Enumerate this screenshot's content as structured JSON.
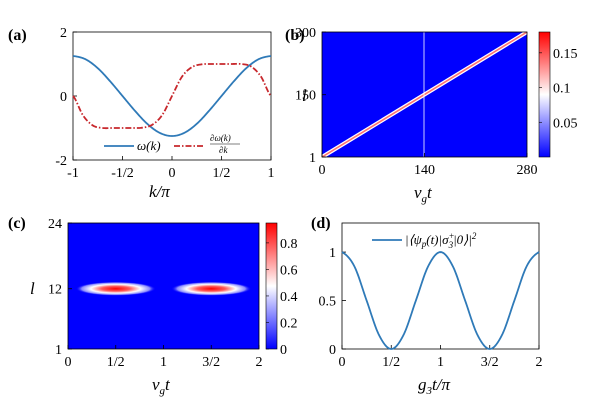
{
  "chart_data": [
    {
      "panel_label": "(a)",
      "type": "line",
      "xlabel": "k/π",
      "ylabel": "",
      "xlim": [
        -1,
        1
      ],
      "ylim": [
        -2,
        2
      ],
      "x_ticks": [
        -1,
        -0.5,
        0,
        0.5,
        1
      ],
      "x_tick_labels": [
        "-1",
        "-1/2",
        "0",
        "1/2",
        "1"
      ],
      "y_ticks": [
        -2,
        0,
        2
      ],
      "y_tick_labels": [
        "-2",
        "0",
        "2"
      ],
      "legend_position": "bottom-center",
      "series": [
        {
          "name": "ω(k)",
          "color": "#2f7ab8",
          "style": "solid",
          "x": [
            -1,
            -0.875,
            -0.75,
            -0.625,
            -0.5,
            -0.375,
            -0.25,
            -0.125,
            0,
            0.125,
            0.25,
            0.375,
            0.5,
            0.625,
            0.75,
            0.875,
            1
          ],
          "y": [
            1.25,
            1.15,
            0.87,
            0.46,
            0.0,
            -0.46,
            -0.87,
            -1.15,
            -1.25,
            -1.15,
            -0.87,
            -0.46,
            0.0,
            0.46,
            0.87,
            1.15,
            1.25
          ]
        },
        {
          "name_num": "∂ω(k)",
          "name_den": "∂k",
          "color": "#c8282d",
          "style": "dashdot",
          "x": [
            -1,
            -0.9,
            -0.8,
            -0.7,
            -0.6,
            -0.5,
            -0.4,
            -0.3,
            -0.2,
            -0.1,
            0,
            0.1,
            0.2,
            0.3,
            0.4,
            0.5,
            0.6,
            0.7,
            0.8,
            0.9,
            1
          ],
          "y": [
            0.0,
            -0.6,
            -0.92,
            -1.0,
            -1.0,
            -1.0,
            -1.0,
            -0.99,
            -0.9,
            -0.6,
            0.0,
            0.6,
            0.9,
            0.99,
            1.0,
            1.0,
            1.0,
            1.0,
            0.92,
            0.6,
            0.0
          ]
        }
      ]
    },
    {
      "panel_label": "(b)",
      "type": "heatmap",
      "xlabel": "v_g t",
      "ylabel": "l",
      "xlim": [
        0,
        280
      ],
      "ylim": [
        1,
        300
      ],
      "x_ticks": [
        0,
        140,
        280
      ],
      "x_tick_labels": [
        "0",
        "140",
        "280"
      ],
      "y_ticks": [
        1,
        150,
        300
      ],
      "y_tick_labels": [
        "1",
        "150",
        "300"
      ],
      "colorbar_ticks": [
        0.05,
        0.1,
        0.15
      ],
      "colorbar_tick_labels": [
        "0.05",
        "0.1",
        "0.15"
      ],
      "colorbar_range": [
        0,
        0.18
      ],
      "background_value": 0,
      "ridge": {
        "x": [
          0,
          280
        ],
        "l": [
          1,
          300
        ],
        "peak": 0.17
      }
    },
    {
      "panel_label": "(c)",
      "type": "heatmap",
      "xlabel": "v_g t",
      "ylabel": "l",
      "xlim": [
        0,
        2
      ],
      "ylim": [
        1,
        24
      ],
      "x_ticks": [
        0,
        0.5,
        1,
        1.5,
        2
      ],
      "x_tick_labels": [
        "0",
        "1/2",
        "1",
        "3/2",
        "2"
      ],
      "y_ticks": [
        1,
        12,
        24
      ],
      "y_tick_labels": [
        "1",
        "12",
        "24"
      ],
      "colorbar_ticks": [
        0,
        0.2,
        0.4,
        0.6,
        0.8
      ],
      "colorbar_tick_labels": [
        "0",
        "0.2",
        "0.4",
        "0.6",
        "0.8"
      ],
      "colorbar_range": [
        0,
        0.95
      ],
      "background_value": 0,
      "blobs": [
        {
          "x_center": 0.5,
          "l_center": 12,
          "peak": 0.95
        },
        {
          "x_center": 1.5,
          "l_center": 12,
          "peak": 0.95
        }
      ]
    },
    {
      "panel_label": "(d)",
      "type": "line",
      "xlabel": "g_3 t/π",
      "ylabel": "",
      "xlim": [
        0,
        2
      ],
      "ylim": [
        0,
        1.3
      ],
      "x_ticks": [
        0,
        0.5,
        1,
        1.5,
        2
      ],
      "x_tick_labels": [
        "0",
        "1/2",
        "1",
        "3/2",
        "2"
      ],
      "y_ticks": [
        0,
        0.5,
        1
      ],
      "y_tick_labels": [
        "0",
        "0.5",
        "1"
      ],
      "legend_position": "top-center",
      "series": [
        {
          "name": "|⟨ψ_p(t)|σ_3^+|0⟩|^2",
          "color": "#2f7ab8",
          "style": "solid",
          "x": [
            0,
            0.125,
            0.25,
            0.375,
            0.5,
            0.625,
            0.75,
            0.875,
            1,
            1.125,
            1.25,
            1.375,
            1.5,
            1.625,
            1.75,
            1.875,
            2
          ],
          "y": [
            1,
            0.854,
            0.5,
            0.146,
            0,
            0.146,
            0.5,
            0.854,
            1,
            0.854,
            0.5,
            0.146,
            0,
            0.146,
            0.5,
            0.854,
            1
          ]
        }
      ]
    }
  ]
}
